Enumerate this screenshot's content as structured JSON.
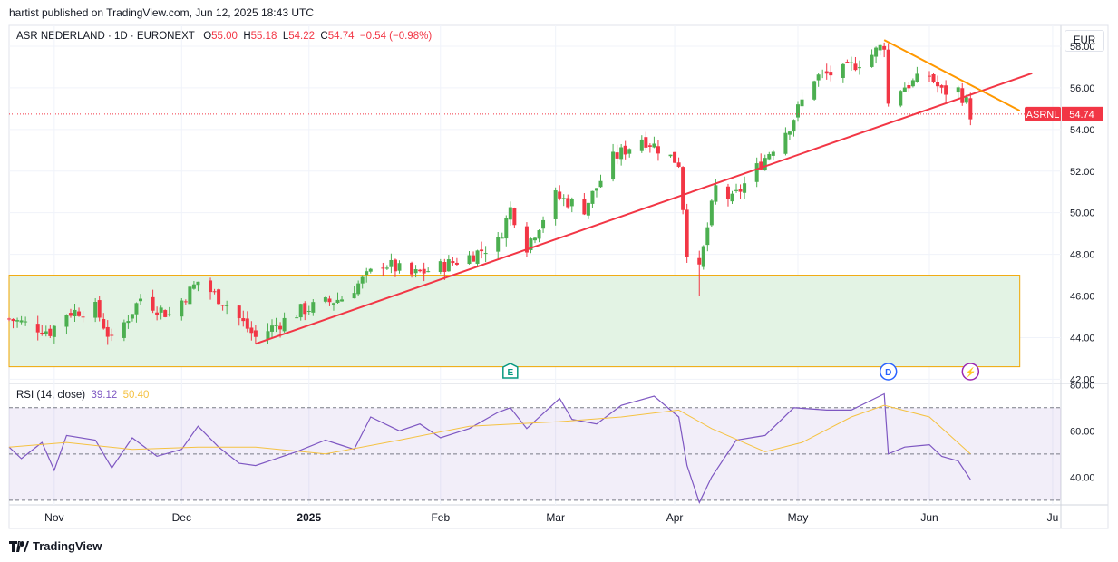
{
  "header": {
    "published": "hartist published on TradingView.com, Jun 12, 2025 18:43 UTC"
  },
  "legend": {
    "symbol": "ASR NEDERLAND · 1D · EURONEXT",
    "o_label": "O",
    "o": "55.00",
    "h_label": "H",
    "h": "55.18",
    "l_label": "L",
    "l": "54.22",
    "c_label": "C",
    "c": "54.74",
    "change": "−0.54 (−0.98%)"
  },
  "currency": "EUR",
  "price_tag": {
    "ticker": "ASRNL",
    "value": "54.74"
  },
  "rsi_legend": {
    "name": "RSI (14, close)",
    "rsi": "39.12",
    "ma": "50.40"
  },
  "branding": {
    "name": "TradingView"
  },
  "colors": {
    "up": "#4caf50",
    "down": "#f23645",
    "rsi": "#7e57c2",
    "rsi_ma": "#f5c242",
    "zone_fill": "#e3f3e4",
    "zone_border": "#f0a500",
    "support": "#f23645",
    "resistance": "#ff9800"
  },
  "chart_data": [
    {
      "type": "candlestick",
      "title": "ASR NEDERLAND · 1D · EURONEXT",
      "ylim": [
        41.8,
        59.0
      ],
      "y_ticks": [
        "58.00",
        "56.00",
        "54.00",
        "52.00",
        "50.00",
        "48.00",
        "46.00",
        "44.00",
        "42.00"
      ],
      "x_ticks": [
        "Nov",
        "Dec",
        "2025",
        "Feb",
        "Mar",
        "Apr",
        "May",
        "Jun",
        "Ju"
      ],
      "x_range": [
        "2024-10-21",
        "2025-07-04"
      ],
      "last_price": 54.74,
      "close_series": [
        {
          "date": "2024-10-21",
          "close": 44.9
        },
        {
          "date": "2024-10-31",
          "close": 44.3
        },
        {
          "date": "2024-11-04",
          "close": 45.2
        },
        {
          "date": "2024-11-11",
          "close": 45.4
        },
        {
          "date": "2024-11-15",
          "close": 43.8
        },
        {
          "date": "2024-11-22",
          "close": 45.9
        },
        {
          "date": "2024-11-29",
          "close": 45.1
        },
        {
          "date": "2024-12-06",
          "close": 46.7
        },
        {
          "date": "2024-12-13",
          "close": 45.6
        },
        {
          "date": "2024-12-20",
          "close": 44.0
        },
        {
          "date": "2024-12-31",
          "close": 45.3
        },
        {
          "date": "2025-01-10",
          "close": 45.9
        },
        {
          "date": "2025-01-20",
          "close": 47.6
        },
        {
          "date": "2025-01-27",
          "close": 47.0
        },
        {
          "date": "2025-02-03",
          "close": 47.4
        },
        {
          "date": "2025-02-10",
          "close": 47.9
        },
        {
          "date": "2025-02-17",
          "close": 48.6
        },
        {
          "date": "2025-02-20",
          "close": 50.2
        },
        {
          "date": "2025-02-24",
          "close": 48.4
        },
        {
          "date": "2025-03-03",
          "close": 50.8
        },
        {
          "date": "2025-03-10",
          "close": 50.2
        },
        {
          "date": "2025-03-17",
          "close": 52.6
        },
        {
          "date": "2025-03-24",
          "close": 53.6
        },
        {
          "date": "2025-03-28",
          "close": 53.1
        },
        {
          "date": "2025-04-02",
          "close": 52.4
        },
        {
          "date": "2025-04-04",
          "close": 48.2
        },
        {
          "date": "2025-04-07",
          "close": 47.2
        },
        {
          "date": "2025-04-09",
          "close": 49.3
        },
        {
          "date": "2025-04-11",
          "close": 51.2
        },
        {
          "date": "2025-04-15",
          "close": 50.6
        },
        {
          "date": "2025-04-22",
          "close": 52.4
        },
        {
          "date": "2025-04-29",
          "close": 54.2
        },
        {
          "date": "2025-05-05",
          "close": 56.5
        },
        {
          "date": "2025-05-12",
          "close": 56.8
        },
        {
          "date": "2025-05-19",
          "close": 57.6
        },
        {
          "date": "2025-05-22",
          "close": 58.1
        },
        {
          "date": "2025-05-23",
          "close": 55.2
        },
        {
          "date": "2025-05-26",
          "close": 56.0
        },
        {
          "date": "2025-06-02",
          "close": 56.6
        },
        {
          "date": "2025-06-05",
          "close": 55.8
        },
        {
          "date": "2025-06-09",
          "close": 55.9
        },
        {
          "date": "2025-06-11",
          "close": 55.3
        },
        {
          "date": "2025-06-12",
          "close": 54.74
        }
      ],
      "lows": [
        {
          "date": "2025-04-07",
          "low": 46.0
        }
      ],
      "annotations": {
        "zone": {
          "from_date": "2024-10-21",
          "to_date": "2025-06-24",
          "y_low": 42.6,
          "y_high": 47.0
        },
        "support_trendline": {
          "from": {
            "date": "2024-12-20",
            "value": 43.7
          },
          "to": {
            "date": "2025-06-27",
            "value": 56.7
          }
        },
        "resistance_trendline": {
          "from": {
            "date": "2025-05-22",
            "value": 58.3
          },
          "to": {
            "date": "2025-06-24",
            "value": 54.9
          }
        },
        "event_markers": [
          {
            "label": "E",
            "date": "2025-02-20"
          },
          {
            "label": "D",
            "date": "2025-05-23"
          },
          {
            "label": "⚡",
            "date": "2025-06-12"
          }
        ]
      }
    },
    {
      "type": "line",
      "title": "RSI (14, close)",
      "ylim": [
        28,
        80.5
      ],
      "y_ticks": [
        "80.00",
        "60.00",
        "40.00"
      ],
      "bands": [
        70,
        50,
        30
      ],
      "x_range": [
        "2024-10-21",
        "2025-07-04"
      ],
      "series": [
        {
          "name": "RSI",
          "values": [
            {
              "date": "2024-10-21",
              "value": 53
            },
            {
              "date": "2024-10-24",
              "value": 48
            },
            {
              "date": "2024-10-29",
              "value": 55
            },
            {
              "date": "2024-11-01",
              "value": 43
            },
            {
              "date": "2024-11-04",
              "value": 58
            },
            {
              "date": "2024-11-11",
              "value": 56
            },
            {
              "date": "2024-11-15",
              "value": 44
            },
            {
              "date": "2024-11-20",
              "value": 57
            },
            {
              "date": "2024-11-26",
              "value": 49
            },
            {
              "date": "2024-12-02",
              "value": 52
            },
            {
              "date": "2024-12-06",
              "value": 62
            },
            {
              "date": "2024-12-11",
              "value": 53
            },
            {
              "date": "2024-12-16",
              "value": 46
            },
            {
              "date": "2024-12-20",
              "value": 45
            },
            {
              "date": "2024-12-30",
              "value": 51
            },
            {
              "date": "2025-01-06",
              "value": 56
            },
            {
              "date": "2025-01-13",
              "value": 52
            },
            {
              "date": "2025-01-17",
              "value": 66
            },
            {
              "date": "2025-01-24",
              "value": 60
            },
            {
              "date": "2025-01-29",
              "value": 63
            },
            {
              "date": "2025-02-03",
              "value": 57
            },
            {
              "date": "2025-02-10",
              "value": 61
            },
            {
              "date": "2025-02-17",
              "value": 68
            },
            {
              "date": "2025-02-20",
              "value": 70
            },
            {
              "date": "2025-02-24",
              "value": 61
            },
            {
              "date": "2025-03-04",
              "value": 74
            },
            {
              "date": "2025-03-07",
              "value": 65
            },
            {
              "date": "2025-03-13",
              "value": 63
            },
            {
              "date": "2025-03-19",
              "value": 71
            },
            {
              "date": "2025-03-27",
              "value": 75
            },
            {
              "date": "2025-04-02",
              "value": 66
            },
            {
              "date": "2025-04-04",
              "value": 45
            },
            {
              "date": "2025-04-07",
              "value": 29
            },
            {
              "date": "2025-04-10",
              "value": 40
            },
            {
              "date": "2025-04-16",
              "value": 56
            },
            {
              "date": "2025-04-23",
              "value": 58
            },
            {
              "date": "2025-04-30",
              "value": 70
            },
            {
              "date": "2025-05-08",
              "value": 69
            },
            {
              "date": "2025-05-14",
              "value": 69
            },
            {
              "date": "2025-05-22",
              "value": 76
            },
            {
              "date": "2025-05-23",
              "value": 50
            },
            {
              "date": "2025-05-27",
              "value": 53
            },
            {
              "date": "2025-06-02",
              "value": 54
            },
            {
              "date": "2025-06-05",
              "value": 49
            },
            {
              "date": "2025-06-09",
              "value": 47
            },
            {
              "date": "2025-06-12",
              "value": 39
            }
          ]
        },
        {
          "name": "RSI-based MA",
          "values": [
            {
              "date": "2024-10-21",
              "value": 53
            },
            {
              "date": "2024-11-04",
              "value": 55
            },
            {
              "date": "2024-11-20",
              "value": 52
            },
            {
              "date": "2024-12-06",
              "value": 53
            },
            {
              "date": "2024-12-20",
              "value": 53
            },
            {
              "date": "2025-01-06",
              "value": 50
            },
            {
              "date": "2025-01-24",
              "value": 56
            },
            {
              "date": "2025-02-10",
              "value": 62
            },
            {
              "date": "2025-03-04",
              "value": 64
            },
            {
              "date": "2025-03-19",
              "value": 66
            },
            {
              "date": "2025-04-02",
              "value": 69
            },
            {
              "date": "2025-04-10",
              "value": 61
            },
            {
              "date": "2025-04-23",
              "value": 51
            },
            {
              "date": "2025-05-02",
              "value": 55
            },
            {
              "date": "2025-05-14",
              "value": 66
            },
            {
              "date": "2025-05-22",
              "value": 71
            },
            {
              "date": "2025-06-02",
              "value": 66
            },
            {
              "date": "2025-06-12",
              "value": 50
            }
          ]
        }
      ]
    }
  ]
}
